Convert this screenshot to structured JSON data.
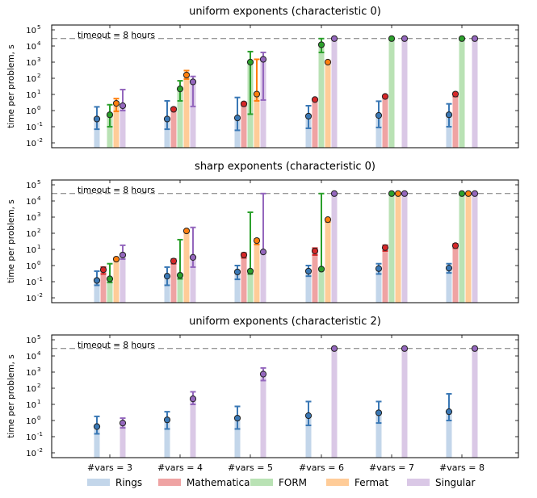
{
  "chart_data": {
    "type": "bar",
    "categories": [
      "#vars = 3",
      "#vars = 4",
      "#vars = 5",
      "#vars = 6",
      "#vars = 7",
      "#vars = 8"
    ],
    "xlabel": "",
    "ylabel": "time per problem, s",
    "yscale": "log",
    "ylim": [
      0.01,
      100000
    ],
    "yticks": [
      {
        "base": "10",
        "exp": "-2",
        "value": 0.01
      },
      {
        "base": "10",
        "exp": "-1",
        "value": 0.1
      },
      {
        "base": "10",
        "exp": "0",
        "value": 1
      },
      {
        "base": "10",
        "exp": "1",
        "value": 10
      },
      {
        "base": "10",
        "exp": "2",
        "value": 100
      },
      {
        "base": "10",
        "exp": "3",
        "value": 1000
      },
      {
        "base": "10",
        "exp": "4",
        "value": 10000
      },
      {
        "base": "10",
        "exp": "5",
        "value": 100000
      }
    ],
    "timeout": {
      "label": "timeout = 8 hours",
      "value": 28800
    },
    "legend": {
      "placement": "bottom",
      "entries": [
        {
          "name": "Rings",
          "color": "#3a78b5",
          "light": "#c3d6ea"
        },
        {
          "name": "Mathematica",
          "color": "#d62728",
          "light": "#efa3a3"
        },
        {
          "name": "FORM",
          "color": "#2ca02c",
          "light": "#b9e2b4"
        },
        {
          "name": "Fermat",
          "color": "#ff7f0e",
          "light": "#ffcc98"
        },
        {
          "name": "Singular",
          "color": "#9467bd",
          "light": "#dac8e6"
        }
      ]
    },
    "panels": [
      {
        "title": "uniform exponents (characteristic 0)",
        "series": [
          {
            "name": "Rings",
            "values": [
              0.3,
              0.3,
              0.35,
              0.45,
              0.5,
              0.55
            ],
            "low": [
              0.07,
              0.07,
              0.06,
              0.08,
              0.09,
              0.1
            ],
            "high": [
              1.7,
              4,
              6.5,
              2,
              3.8,
              2.6
            ]
          },
          {
            "name": "Mathematica",
            "values": [
              null,
              1.2,
              2.6,
              4.8,
              7.5,
              10.5
            ],
            "low": [
              null,
              1,
              2,
              4,
              6,
              7.5
            ],
            "high": [
              null,
              1.5,
              3.2,
              5.5,
              9,
              13
            ]
          },
          {
            "name": "FORM",
            "values": [
              0.55,
              22,
              1000,
              12000,
              28800,
              28800
            ],
            "low": [
              0.1,
              4,
              0.6,
              4000,
              28800,
              28800
            ],
            "high": [
              2.3,
              70,
              4500,
              28800,
              28800,
              28800
            ]
          },
          {
            "name": "Fermat",
            "values": [
              2.8,
              160,
              10.5,
              1000,
              null,
              null
            ],
            "low": [
              0.9,
              90,
              4,
              900,
              null,
              null
            ],
            "high": [
              5.5,
              300,
              1500,
              1200,
              null,
              null
            ]
          },
          {
            "name": "Singular",
            "values": [
              2,
              60,
              1500,
              28800,
              28800,
              28800
            ],
            "low": [
              1,
              1.8,
              4.5,
              28800,
              28800,
              28800
            ],
            "high": [
              20,
              130,
              4000,
              28800,
              28800,
              28800
            ]
          }
        ]
      },
      {
        "title": "sharp exponents (characteristic 0)",
        "series": [
          {
            "name": "Rings",
            "values": [
              0.12,
              0.22,
              0.4,
              0.45,
              0.65,
              0.7
            ],
            "low": [
              0.06,
              0.06,
              0.14,
              0.22,
              0.3,
              0.35
            ],
            "high": [
              0.45,
              0.8,
              1,
              1,
              1.3,
              1.3
            ]
          },
          {
            "name": "Mathematica",
            "values": [
              0.55,
              1.9,
              4.5,
              8,
              13,
              17
            ],
            "low": [
              0.3,
              1.3,
              3,
              4.5,
              8,
              12
            ],
            "high": [
              0.8,
              2.5,
              6,
              12,
              18,
              22
            ]
          },
          {
            "name": "FORM",
            "values": [
              0.15,
              0.25,
              0.45,
              0.6,
              28800,
              28800
            ],
            "low": [
              0.09,
              0.15,
              0.3,
              0.5,
              28800,
              28800
            ],
            "high": [
              1.3,
              40,
              2000,
              28800,
              28800,
              28800
            ]
          },
          {
            "name": "Fermat",
            "values": [
              2.5,
              140,
              35,
              700,
              28800,
              28800
            ],
            "low": [
              2,
              120,
              20,
              500,
              28800,
              28800
            ],
            "high": [
              3,
              160,
              45,
              800,
              28800,
              28800
            ]
          },
          {
            "name": "Singular",
            "values": [
              4.5,
              3.2,
              7,
              28800,
              28800,
              28800
            ],
            "low": [
              2.5,
              0.8,
              6,
              28800,
              28800,
              28800
            ],
            "high": [
              18,
              230,
              28800,
              28800,
              28800,
              28800
            ]
          }
        ]
      },
      {
        "title": "uniform exponents (characteristic 2)",
        "series": [
          {
            "name": "Rings",
            "values": [
              0.42,
              1.1,
              1.4,
              2,
              3,
              3.5
            ],
            "low": [
              0.15,
              0.3,
              0.3,
              0.5,
              0.7,
              1
            ],
            "high": [
              1.8,
              3.5,
              7.5,
              15,
              15,
              45
            ]
          },
          {
            "name": "Singular",
            "values": [
              0.7,
              22,
              750,
              28800,
              28800,
              28800
            ],
            "low": [
              0.35,
              10,
              300,
              28800,
              28800,
              28800
            ],
            "high": [
              1.4,
              60,
              1800,
              28800,
              28800,
              28800
            ]
          }
        ]
      }
    ]
  }
}
